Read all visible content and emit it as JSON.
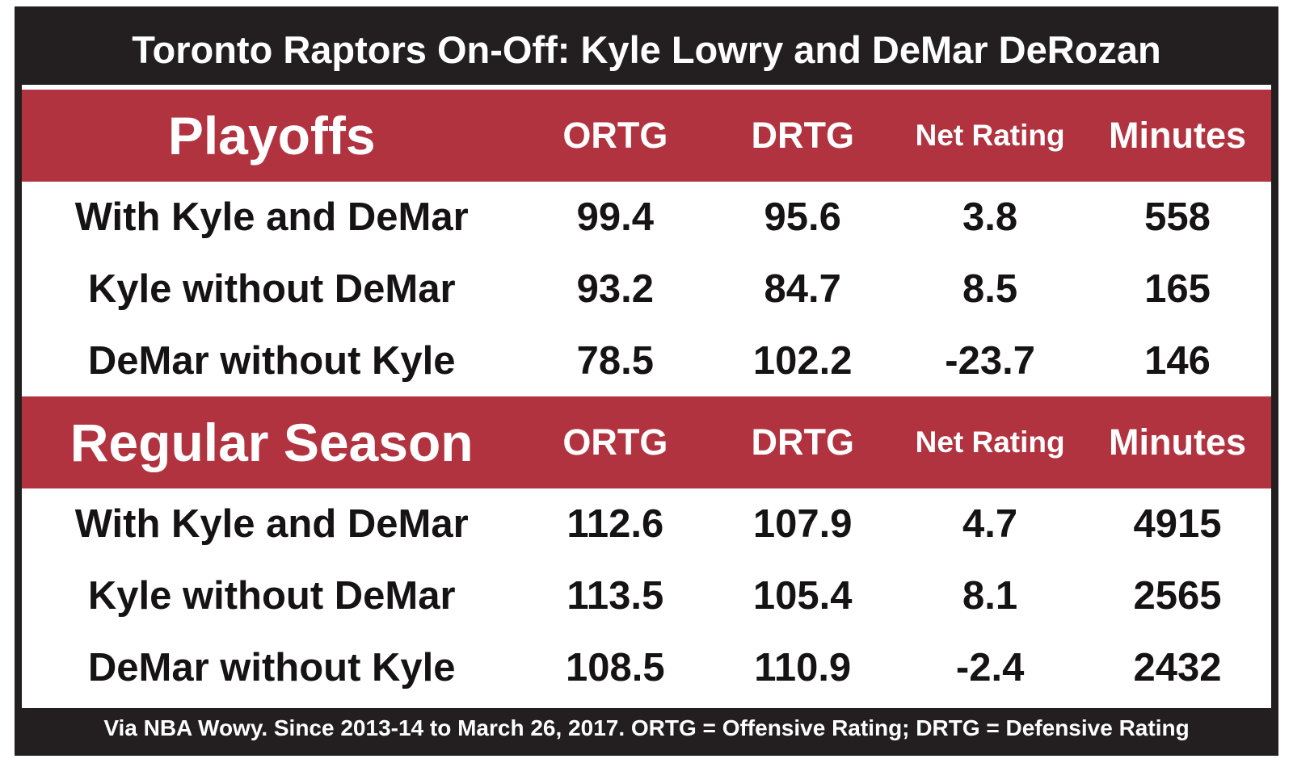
{
  "title": "Toronto Raptors On-Off: Kyle Lowry and DeMar DeRozan",
  "footer": "Via NBA Wowy. Since 2013-14 to March 26, 2017. ORTG = Offensive Rating; DRTG = Defensive Rating",
  "colors": {
    "bar_black": "#231f20",
    "accent_red": "#b23340",
    "body_text": "#161314",
    "header_text": "#ffffff"
  },
  "chart_data": {
    "type": "table",
    "title": "Toronto Raptors On-Off: Kyle Lowry and DeMar DeRozan",
    "footnote": "Via NBA Wowy. Since 2013-14 to March 26, 2017. ORTG = Offensive Rating; DRTG = Defensive Rating",
    "sections": [
      {
        "name": "Playoffs",
        "columns": [
          "ORTG",
          "DRTG",
          "Net Rating",
          "Minutes"
        ],
        "rows": [
          {
            "label": "With Kyle and DeMar",
            "values": [
              99.4,
              95.6,
              3.8,
              558
            ]
          },
          {
            "label": "Kyle without DeMar",
            "values": [
              93.2,
              84.7,
              8.5,
              165
            ]
          },
          {
            "label": "DeMar without Kyle",
            "values": [
              78.5,
              102.2,
              -23.7,
              146
            ]
          }
        ]
      },
      {
        "name": "Regular Season",
        "columns": [
          "ORTG",
          "DRTG",
          "Net Rating",
          "Minutes"
        ],
        "rows": [
          {
            "label": "With Kyle and DeMar",
            "values": [
              112.6,
              107.9,
              4.7,
              4915
            ]
          },
          {
            "label": "Kyle without DeMar",
            "values": [
              113.5,
              105.4,
              8.1,
              2565
            ]
          },
          {
            "label": "DeMar without Kyle",
            "values": [
              108.5,
              110.9,
              -2.4,
              2432
            ]
          }
        ]
      }
    ]
  }
}
